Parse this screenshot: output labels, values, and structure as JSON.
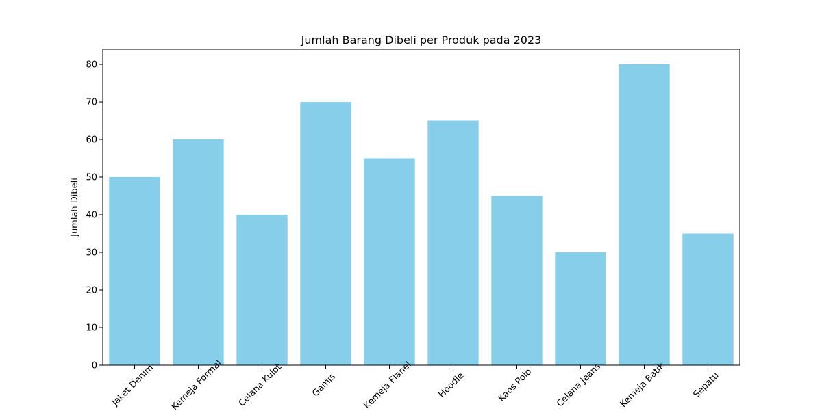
{
  "chart_data": {
    "type": "bar",
    "title": "Jumlah Barang Dibeli per Produk pada 2023",
    "xlabel": "",
    "ylabel": "Jumlah Dibeli",
    "categories": [
      "Jaket Denim",
      "Kemeja Formal",
      "Celana Kulot",
      "Gamis",
      "Kemeja Flanel",
      "Hoodie",
      "Kaos Polo",
      "Celana Jeans",
      "Kemeja Batik",
      "Sepatu"
    ],
    "values": [
      50,
      60,
      40,
      70,
      55,
      65,
      45,
      30,
      80,
      35
    ],
    "ylim": [
      0,
      84
    ],
    "yticks": [
      0,
      10,
      20,
      30,
      40,
      50,
      60,
      70,
      80
    ],
    "bar_color": "#87ceeb",
    "grid": false,
    "xtick_rotation": "45 degrees"
  }
}
